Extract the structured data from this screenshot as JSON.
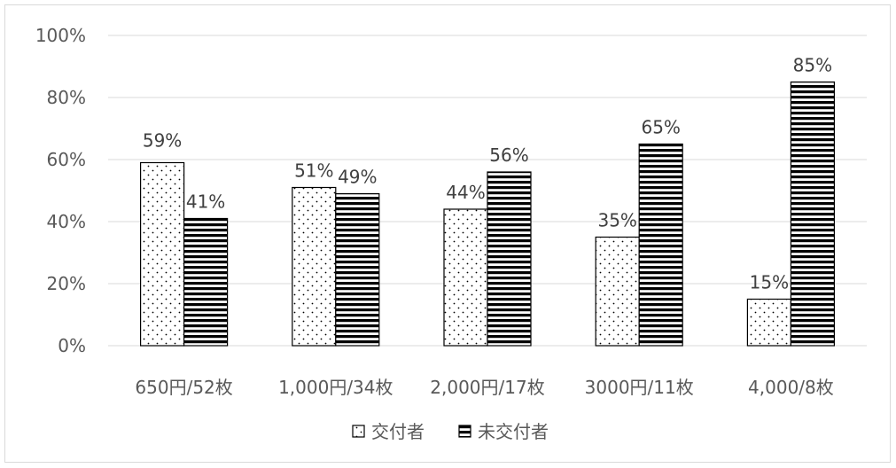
{
  "chart_data": {
    "type": "bar",
    "categories": [
      "650円/52枚",
      "1,000円/34枚",
      "2,000円/17枚",
      "3000円/11枚",
      "4,000/8枚"
    ],
    "series": [
      {
        "name": "交付者",
        "values": [
          59,
          51,
          44,
          35,
          15
        ],
        "data_labels": [
          "59%",
          "51%",
          "44%",
          "35%",
          "15%"
        ],
        "pattern": "dots"
      },
      {
        "name": "未交付者",
        "values": [
          41,
          49,
          56,
          65,
          85
        ],
        "data_labels": [
          "41%",
          "49%",
          "56%",
          "65%",
          "85%"
        ],
        "pattern": "horizontal-stripes"
      }
    ],
    "y_ticks": [
      "0%",
      "20%",
      "40%",
      "60%",
      "80%",
      "100%"
    ],
    "ylim": [
      0,
      100
    ],
    "grid": true,
    "legend_position": "bottom-center"
  }
}
